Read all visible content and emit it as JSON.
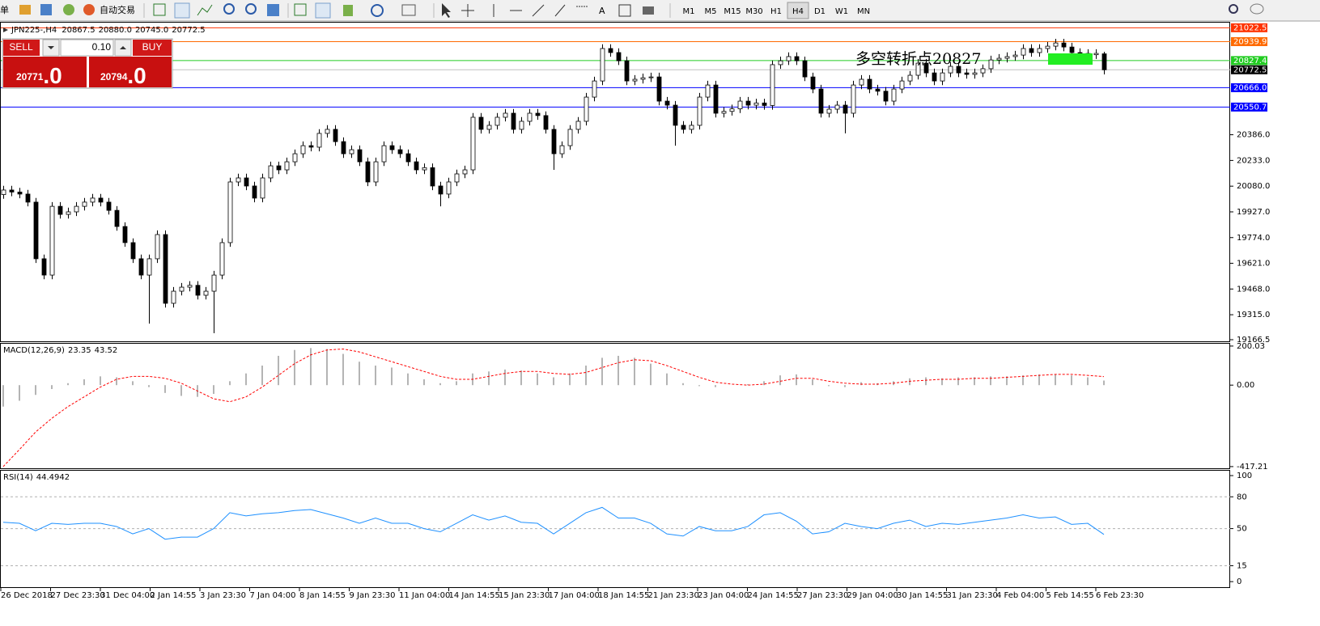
{
  "toolbar": {
    "menu": "单",
    "autotrading": "自动交易",
    "text_tool": "A",
    "timeframes": [
      "M1",
      "M5",
      "M15",
      "M30",
      "H1",
      "H4",
      "D1",
      "W1",
      "MN"
    ],
    "active": "H4"
  },
  "trade_panel": {
    "sell": "SELL",
    "buy": "BUY",
    "lots": "0.10",
    "bid_main": "20771",
    "bid_frac": ".0",
    "ask_main": "20794",
    "ask_frac": ".0"
  },
  "chart_data": [
    {
      "type": "candlestick",
      "title": "JPN225-,H4",
      "header_values": [
        "20867.5",
        "20880.0",
        "20745.0",
        "20772.5"
      ],
      "annotation": "多空转折点20827",
      "annotation_color": "#33ee33",
      "up_color": "#ffffff",
      "down_color": "#000000",
      "wick_color": "#000000",
      "ylim": [
        19152,
        21053
      ],
      "yticks": [
        19166.5,
        {
          "value": 19315,
          "label": "19315.0"
        },
        {
          "value": 19468,
          "label": "19468.0"
        },
        {
          "value": 19621,
          "label": "19621.0"
        },
        {
          "value": 19774,
          "label": "19774.0"
        },
        {
          "value": 19927,
          "label": "19927.0"
        },
        {
          "value": 20080,
          "label": "20080.0"
        },
        {
          "value": 20233,
          "label": "20233.0"
        },
        {
          "value": 20386,
          "label": "20386.0"
        }
      ],
      "levels": [
        {
          "value": 21022.5,
          "label": "21022.5",
          "color": "#ff3300",
          "box": "#ff3300"
        },
        {
          "value": 20939.9,
          "label": "20939.9",
          "color": "#ff6a00",
          "box": "#ff6a00"
        },
        {
          "value": 20827.4,
          "label": "20827.4",
          "color": "#22cc22",
          "box": "#22cc22"
        },
        {
          "value": 20772.5,
          "label": "20772.5",
          "color": "#c0c0c0",
          "box": "#000000"
        },
        {
          "value": 20666,
          "label": "20666.0",
          "color": "#0000ff",
          "box": "#0000ff"
        },
        {
          "value": 20550.7,
          "label": "20550.7",
          "color": "#0000ff",
          "box": "#0000ff"
        }
      ],
      "time_labels": [
        "26 Dec 2018",
        "27 Dec 23:30",
        "31 Dec 04:00",
        "2 Jan 14:55",
        "3 Jan 23:30",
        "7 Jan 04:00",
        "8 Jan 14:55",
        "9 Jan 23:30",
        "11 Jan 04:00",
        "14 Jan 14:55",
        "15 Jan 23:30",
        "17 Jan 04:00",
        "18 Jan 14:55",
        "21 Jan 23:30",
        "23 Jan 04:00",
        "24 Jan 14:55",
        "27 Jan 23:30",
        "29 Jan 04:00",
        "30 Jan 14:55",
        "31 Jan 23:30",
        "4 Feb 04:00",
        "5 Feb 14:55",
        "6 Feb 23:30"
      ],
      "open": [
        20030,
        20057,
        20045,
        20033,
        19985,
        19648,
        19551,
        19960,
        19912,
        19927,
        19960,
        19985,
        20009,
        19985,
        19936,
        19840,
        19744,
        19648,
        19551,
        19648,
        19792,
        19383,
        19455,
        19479,
        19490,
        19431,
        19455,
        19551,
        19744,
        20105,
        20129,
        20081,
        20009,
        20129,
        20201,
        20177,
        20225,
        20273,
        20321,
        20312,
        20394,
        20418,
        20345,
        20273,
        20297,
        20225,
        20105,
        20225,
        20321,
        20297,
        20273,
        20225,
        20177,
        20190,
        20081,
        20033,
        20105,
        20153,
        20177,
        20490,
        20418,
        20442,
        20490,
        20514,
        20418,
        20466,
        20514,
        20500,
        20418,
        20273,
        20321,
        20418,
        20466,
        20610,
        20706,
        20899,
        20875,
        20826,
        20706,
        20716,
        20725,
        20730,
        20586,
        20562,
        20442,
        20418,
        20442,
        20610,
        20682,
        20514,
        20525,
        20540,
        20586,
        20562,
        20575,
        20560,
        20803,
        20826,
        20851,
        20826,
        20730,
        20658,
        20514,
        20538,
        20562,
        20514,
        20682,
        20716,
        20658,
        20645,
        20586,
        20658,
        20706,
        20740,
        20812,
        20754,
        20706,
        20754,
        20793,
        20754,
        20745,
        20754,
        20779,
        20831,
        20841,
        20851,
        20860,
        20899,
        20875,
        20899,
        20913,
        20932,
        20908,
        20875,
        20870,
        20862,
        20867.5
      ],
      "high": [
        20082,
        20082,
        20070,
        20058,
        20010,
        19673,
        19985,
        19985,
        19952,
        19985,
        20010,
        20034,
        20034,
        20010,
        19961,
        19865,
        19769,
        19673,
        19673,
        19817,
        19817,
        19480,
        19504,
        19515,
        19515,
        19480,
        19576,
        19769,
        20130,
        20154,
        20154,
        20106,
        20154,
        20226,
        20226,
        20250,
        20298,
        20346,
        20346,
        20419,
        20443,
        20443,
        20370,
        20322,
        20322,
        20250,
        20250,
        20346,
        20346,
        20322,
        20298,
        20250,
        20215,
        20215,
        20106,
        20130,
        20178,
        20202,
        20515,
        20515,
        20467,
        20515,
        20539,
        20539,
        20491,
        20539,
        20539,
        20525,
        20443,
        20346,
        20443,
        20491,
        20635,
        20731,
        20924,
        20924,
        20900,
        20851,
        20741,
        20750,
        20755,
        20755,
        20611,
        20587,
        20467,
        20467,
        20635,
        20707,
        20707,
        20550,
        20565,
        20611,
        20611,
        20600,
        20600,
        20828,
        20851,
        20876,
        20876,
        20851,
        20755,
        20683,
        20563,
        20587,
        20587,
        20707,
        20741,
        20741,
        20683,
        20670,
        20683,
        20731,
        20765,
        20837,
        20837,
        20779,
        20779,
        20818,
        20818,
        20779,
        20779,
        20804,
        20856,
        20866,
        20876,
        20885,
        20924,
        20924,
        20924,
        20938,
        20957,
        20957,
        20933,
        20900,
        20895,
        20895,
        20880
      ],
      "low": [
        20005,
        20020,
        20008,
        19960,
        19623,
        19526,
        19526,
        19887,
        19887,
        19902,
        19935,
        19960,
        19960,
        19911,
        19815,
        19719,
        19623,
        19526,
        19262,
        19623,
        19358,
        19358,
        19430,
        19454,
        19406,
        19406,
        19205,
        19526,
        19719,
        20080,
        20056,
        19984,
        19984,
        20104,
        20152,
        20152,
        20200,
        20248,
        20287,
        20287,
        20369,
        20320,
        20248,
        20248,
        20200,
        20080,
        20080,
        20200,
        20272,
        20248,
        20200,
        20152,
        20152,
        20056,
        19960,
        20008,
        20080,
        20128,
        20152,
        20393,
        20393,
        20417,
        20465,
        20393,
        20393,
        20441,
        20475,
        20393,
        20177,
        20248,
        20296,
        20393,
        20441,
        20585,
        20681,
        20850,
        20801,
        20681,
        20681,
        20691,
        20700,
        20561,
        20537,
        20321,
        20393,
        20393,
        20417,
        20585,
        20489,
        20489,
        20500,
        20515,
        20537,
        20537,
        20535,
        20535,
        20778,
        20801,
        20801,
        20705,
        20633,
        20489,
        20489,
        20513,
        20394,
        20489,
        20657,
        20633,
        20620,
        20561,
        20561,
        20633,
        20681,
        20715,
        20729,
        20681,
        20681,
        20729,
        20729,
        20720,
        20720,
        20729,
        20754,
        20806,
        20816,
        20826,
        20835,
        20850,
        20850,
        20874,
        20888,
        20883,
        20850,
        20845,
        20837,
        20837,
        20745
      ],
      "close": [
        20057,
        20045,
        20033,
        19985,
        19648,
        19551,
        19960,
        19912,
        19927,
        19960,
        19985,
        20009,
        19985,
        19936,
        19840,
        19744,
        19648,
        19551,
        19648,
        19792,
        19383,
        19455,
        19479,
        19490,
        19431,
        19455,
        19551,
        19744,
        20105,
        20129,
        20081,
        20009,
        20129,
        20201,
        20177,
        20225,
        20273,
        20321,
        20312,
        20394,
        20418,
        20345,
        20273,
        20297,
        20225,
        20105,
        20225,
        20321,
        20297,
        20273,
        20225,
        20177,
        20190,
        20081,
        20033,
        20105,
        20153,
        20177,
        20490,
        20418,
        20442,
        20490,
        20514,
        20418,
        20466,
        20514,
        20500,
        20418,
        20273,
        20321,
        20418,
        20466,
        20610,
        20706,
        20899,
        20875,
        20826,
        20706,
        20716,
        20725,
        20730,
        20586,
        20562,
        20442,
        20418,
        20442,
        20610,
        20682,
        20514,
        20525,
        20540,
        20586,
        20562,
        20575,
        20560,
        20803,
        20826,
        20851,
        20826,
        20730,
        20658,
        20514,
        20538,
        20562,
        20514,
        20682,
        20716,
        20658,
        20645,
        20586,
        20658,
        20706,
        20740,
        20812,
        20754,
        20706,
        20754,
        20793,
        20754,
        20745,
        20754,
        20779,
        20831,
        20841,
        20851,
        20860,
        20899,
        20875,
        20899,
        20913,
        20932,
        20908,
        20875,
        20870,
        20862,
        20870,
        20772.5
      ]
    },
    {
      "type": "macd",
      "title": "MACD(12,26,9)",
      "color": "#b4b4b4",
      "signal_color": "#ff0000",
      "ylim": [
        -430,
        212
      ],
      "yticks": [
        200.03,
        {
          "value": 0,
          "label": "0.00"
        },
        -417.21
      ],
      "values": [
        -110,
        -80,
        -50,
        -20,
        10,
        30,
        45,
        40,
        20,
        -10,
        -40,
        -55,
        -60,
        -45,
        20,
        60,
        100,
        150,
        180,
        190,
        185,
        160,
        120,
        100,
        90,
        60,
        30,
        10,
        20,
        60,
        70,
        80,
        75,
        60,
        40,
        60,
        100,
        140,
        150,
        140,
        110,
        60,
        10,
        -5,
        -10,
        0,
        5,
        20,
        50,
        55,
        30,
        -5,
        -10,
        15,
        10,
        20,
        35,
        40,
        35,
        40,
        40,
        45,
        45,
        50,
        55,
        55,
        50,
        40,
        23.35
      ],
      "signal": [
        -417,
        -330,
        -240,
        -170,
        -110,
        -60,
        -10,
        30,
        45,
        45,
        35,
        10,
        -30,
        -70,
        -85,
        -60,
        -10,
        50,
        110,
        155,
        180,
        185,
        170,
        145,
        120,
        95,
        70,
        45,
        30,
        30,
        45,
        60,
        70,
        70,
        60,
        55,
        65,
        90,
        115,
        130,
        125,
        100,
        70,
        40,
        15,
        5,
        0,
        5,
        20,
        35,
        35,
        20,
        10,
        5,
        5,
        10,
        20,
        25,
        30,
        30,
        35,
        35,
        40,
        45,
        50,
        55,
        55,
        50,
        43.52
      ]
    },
    {
      "type": "line",
      "title": "RSI(14)",
      "color": "#1e90ff",
      "ylim": [
        -6,
        104.6
      ],
      "yticks": [
        100,
        80,
        50,
        15,
        0
      ],
      "values": [
        56,
        55,
        48,
        55,
        54,
        55,
        55,
        52,
        45,
        50,
        40,
        42,
        42,
        50,
        65,
        62,
        64,
        65,
        67,
        68,
        64,
        60,
        55,
        60,
        55,
        55,
        50,
        47,
        55,
        63,
        58,
        62,
        56,
        55,
        45,
        55,
        65,
        70,
        60,
        60,
        55,
        45,
        43,
        52,
        48,
        48,
        52,
        63,
        65,
        57,
        45,
        47,
        55,
        52,
        50,
        55,
        58,
        52,
        55,
        54,
        56,
        58,
        60,
        63,
        60,
        61,
        54,
        55,
        44.4942
      ]
    }
  ]
}
